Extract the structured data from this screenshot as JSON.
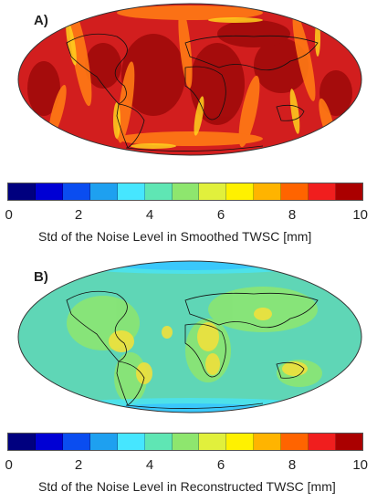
{
  "panels": [
    {
      "label": "A)",
      "colorbar_title": "Std of the Noise Level in Smoothed TWSC [mm]",
      "dominant_level": "high (8–10)"
    },
    {
      "label": "B)",
      "colorbar_title": "Std of the Noise Level in Reconstructed TWSC [mm]",
      "dominant_level": "moderate (4–6)"
    }
  ],
  "colorbar": {
    "ticks": [
      "0",
      "2",
      "4",
      "6",
      "8",
      "10"
    ],
    "range": [
      0,
      10
    ],
    "colors": [
      "#00007f",
      "#0000d4",
      "#0a4df0",
      "#1ea0f0",
      "#46e6ff",
      "#5fe6b4",
      "#8ee66e",
      "#e1f03c",
      "#fff100",
      "#ffb400",
      "#ff6400",
      "#f01e1e",
      "#aa0000"
    ]
  },
  "map_colors": {
    "a_base": "#d21e1e",
    "a_dark": "#a00a0a",
    "a_orange": "#ff7a14",
    "a_yellow": "#ffd21e",
    "b_base": "#5fd6b6",
    "b_green": "#8ee66e",
    "b_yellow": "#f0e03c",
    "b_blue": "#1e82f0",
    "b_cyan": "#46e6ff",
    "coast": "#111111"
  }
}
